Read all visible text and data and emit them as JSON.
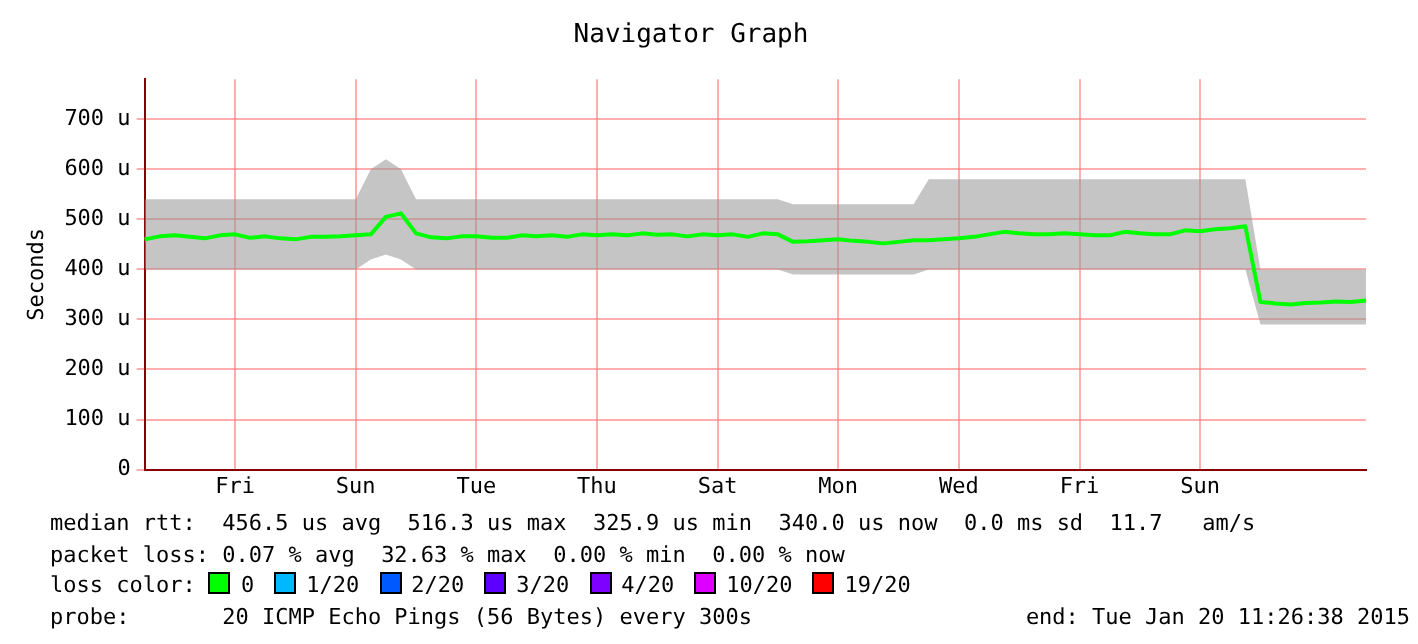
{
  "chart_data": {
    "type": "line",
    "title": "Navigator Graph",
    "ylabel": "Seconds",
    "categories": [
      null,
      null,
      null,
      null,
      null,
      null,
      "Fri",
      null,
      null,
      null,
      null,
      null,
      null,
      null,
      "Sun",
      null,
      null,
      null,
      null,
      null,
      null,
      null,
      "Tue",
      null,
      null,
      null,
      null,
      null,
      null,
      null,
      "Thu",
      null,
      null,
      null,
      null,
      null,
      null,
      null,
      "Sat",
      null,
      null,
      null,
      null,
      null,
      null,
      null,
      "Mon",
      null,
      null,
      null,
      null,
      null,
      null,
      null,
      "Wed",
      null,
      null,
      null,
      null,
      null,
      null,
      null,
      "Fri",
      null,
      null,
      null,
      null,
      null,
      null,
      null,
      "Sun",
      null,
      null,
      null,
      null,
      null,
      null,
      null,
      null,
      null,
      null,
      null
    ],
    "series": [
      {
        "name": "0",
        "color": "#00ff00",
        "values": [
          460,
          466,
          468,
          465,
          462,
          468,
          470,
          463,
          466,
          462,
          460,
          465,
          465,
          466,
          468,
          470,
          505,
          512,
          472,
          464,
          462,
          466,
          466,
          463,
          463,
          468,
          466,
          468,
          465,
          470,
          468,
          470,
          468,
          472,
          469,
          470,
          466,
          470,
          468,
          470,
          465,
          472,
          470,
          455,
          456,
          458,
          460,
          457,
          455,
          452,
          455,
          458,
          458,
          460,
          462,
          465,
          470,
          475,
          472,
          470,
          470,
          472,
          470,
          468,
          468,
          475,
          472,
          470,
          470,
          478,
          476,
          480,
          482,
          486,
          335,
          332,
          330,
          333,
          334,
          336,
          335,
          338
        ],
        "lower": [
          400,
          400,
          400,
          400,
          400,
          400,
          400,
          400,
          400,
          400,
          400,
          400,
          400,
          400,
          400,
          420,
          430,
          420,
          400,
          400,
          400,
          400,
          400,
          400,
          400,
          400,
          400,
          400,
          400,
          400,
          400,
          400,
          400,
          400,
          400,
          400,
          400,
          400,
          400,
          400,
          400,
          400,
          400,
          390,
          390,
          390,
          390,
          390,
          390,
          390,
          390,
          390,
          400,
          400,
          400,
          400,
          400,
          400,
          400,
          400,
          400,
          400,
          400,
          400,
          400,
          400,
          400,
          400,
          400,
          400,
          400,
          400,
          400,
          400,
          290,
          290,
          290,
          290,
          290,
          290,
          290,
          290
        ],
        "upper": [
          540,
          540,
          540,
          540,
          540,
          540,
          540,
          540,
          540,
          540,
          540,
          540,
          540,
          540,
          540,
          600,
          620,
          600,
          540,
          540,
          540,
          540,
          540,
          540,
          540,
          540,
          540,
          540,
          540,
          540,
          540,
          540,
          540,
          540,
          540,
          540,
          540,
          540,
          540,
          540,
          540,
          540,
          540,
          530,
          530,
          530,
          530,
          530,
          530,
          530,
          530,
          530,
          580,
          580,
          580,
          580,
          580,
          580,
          580,
          580,
          580,
          580,
          580,
          580,
          580,
          580,
          580,
          580,
          580,
          580,
          580,
          580,
          580,
          580,
          400,
          400,
          400,
          400,
          400,
          400,
          400,
          400
        ]
      },
      {
        "name": "1/20",
        "color": "#00b8ff",
        "values": [
          null,
          null,
          null,
          null,
          null,
          null,
          null,
          null,
          null,
          null,
          null,
          null,
          null,
          null,
          null,
          null,
          null,
          null,
          null,
          null,
          null,
          null,
          null,
          null,
          null,
          null,
          null,
          null,
          null,
          null,
          null,
          null,
          null,
          null,
          null,
          null,
          null,
          null,
          null,
          null,
          null,
          null,
          null,
          null,
          null,
          null,
          null,
          null,
          null,
          null,
          null,
          null,
          null,
          null,
          null,
          null,
          null,
          null,
          null,
          null,
          null,
          null,
          null,
          null,
          null,
          null,
          null,
          null,
          null,
          null,
          null,
          null,
          null,
          null,
          null,
          null,
          null,
          null,
          null,
          null,
          null,
          null
        ]
      },
      {
        "name": "2/20",
        "color": "#0059ff",
        "values": [
          null,
          null,
          null,
          null,
          null,
          null,
          null,
          null,
          null,
          null,
          null,
          null,
          null,
          null,
          null,
          null,
          null,
          null,
          null,
          null,
          null,
          null,
          null,
          null,
          null,
          null,
          null,
          null,
          null,
          null,
          null,
          null,
          null,
          null,
          null,
          null,
          null,
          null,
          null,
          null,
          null,
          null,
          null,
          null,
          null,
          null,
          null,
          null,
          null,
          null,
          null,
          null,
          null,
          null,
          null,
          null,
          null,
          null,
          null,
          null,
          null,
          null,
          null,
          null,
          null,
          null,
          null,
          null,
          null,
          null,
          null,
          null,
          null,
          null,
          null,
          null,
          null,
          null,
          null,
          null,
          null,
          null
        ]
      },
      {
        "name": "3/20",
        "color": "#5e00ff",
        "values": [
          null,
          null,
          null,
          null,
          null,
          null,
          null,
          null,
          null,
          null,
          null,
          null,
          null,
          null,
          null,
          null,
          null,
          null,
          null,
          null,
          null,
          null,
          null,
          null,
          null,
          null,
          null,
          null,
          null,
          null,
          null,
          null,
          null,
          null,
          null,
          null,
          null,
          null,
          null,
          null,
          null,
          null,
          null,
          null,
          null,
          null,
          null,
          null,
          null,
          null,
          null,
          null,
          null,
          null,
          null,
          null,
          null,
          null,
          null,
          null,
          null,
          null,
          null,
          null,
          null,
          null,
          null,
          null,
          null,
          null,
          null,
          null,
          null,
          null,
          null,
          null,
          null,
          null,
          null,
          null,
          null,
          null
        ]
      },
      {
        "name": "4/20",
        "color": "#7e00ff",
        "values": [
          null,
          null,
          null,
          null,
          null,
          null,
          null,
          null,
          null,
          null,
          null,
          null,
          null,
          null,
          null,
          null,
          null,
          null,
          null,
          null,
          null,
          null,
          null,
          null,
          null,
          null,
          null,
          null,
          null,
          null,
          null,
          null,
          null,
          null,
          null,
          null,
          null,
          null,
          null,
          null,
          null,
          null,
          null,
          null,
          null,
          null,
          null,
          null,
          null,
          null,
          null,
          null,
          null,
          null,
          null,
          null,
          null,
          null,
          null,
          null,
          null,
          null,
          null,
          null,
          null,
          null,
          null,
          null,
          null,
          null,
          null,
          null,
          null,
          null,
          null,
          null,
          null,
          null,
          null,
          null,
          null,
          null
        ]
      },
      {
        "name": "10/20",
        "color": "#dd00ff",
        "values": [
          null,
          null,
          null,
          null,
          null,
          null,
          null,
          null,
          null,
          null,
          null,
          null,
          null,
          null,
          null,
          null,
          null,
          null,
          null,
          null,
          null,
          null,
          null,
          null,
          null,
          null,
          null,
          null,
          null,
          null,
          null,
          null,
          null,
          null,
          null,
          null,
          null,
          null,
          null,
          null,
          null,
          null,
          null,
          null,
          null,
          null,
          null,
          null,
          null,
          null,
          null,
          null,
          null,
          null,
          null,
          null,
          null,
          null,
          null,
          null,
          null,
          null,
          null,
          null,
          null,
          null,
          null,
          null,
          null,
          null,
          null,
          null,
          null,
          null,
          null,
          null,
          null,
          null,
          null,
          null,
          null,
          null
        ]
      },
      {
        "name": "19/20",
        "color": "#ff0000",
        "values": [
          null,
          null,
          null,
          null,
          null,
          null,
          null,
          null,
          null,
          null,
          null,
          null,
          null,
          null,
          null,
          null,
          null,
          null,
          null,
          null,
          null,
          null,
          null,
          null,
          null,
          null,
          null,
          null,
          null,
          null,
          null,
          null,
          null,
          null,
          null,
          null,
          null,
          null,
          null,
          null,
          null,
          null,
          null,
          null,
          null,
          null,
          null,
          null,
          null,
          null,
          null,
          null,
          null,
          null,
          null,
          null,
          null,
          null,
          null,
          null,
          null,
          null,
          null,
          null,
          null,
          null,
          null,
          null,
          null,
          null,
          null,
          null,
          null,
          null,
          null,
          null,
          null,
          null,
          null,
          null,
          null,
          null
        ]
      }
    ],
    "ylim": [
      0,
      780
    ],
    "yticks": [
      0,
      {
        "value": 100,
        "label": "100 u"
      },
      {
        "value": 200,
        "label": "200 u"
      },
      {
        "value": 300,
        "label": "300 u"
      },
      {
        "value": 400,
        "label": "400 u"
      },
      {
        "value": 500,
        "label": "500 u"
      },
      {
        "value": 600,
        "label": "600 u"
      },
      {
        "value": 700,
        "label": "700 u"
      }
    ],
    "grid": true,
    "legend": "bottom",
    "marker": "none",
    "line_style": "solid",
    "annotations": [
      "median rtt:  456.5 us avg  516.3 us max  325.9 us min  340.0 us now  0.0 ms sd  11.7   am/s",
      "packet loss: 0.07 % avg  32.63 % max  0.00 % min  0.00 % now",
      "loss color:",
      "probe:       20 ICMP Echo Pings (56 Bytes) every 300s",
      "end: Tue Jan 20 11:26:38 2015"
    ]
  }
}
